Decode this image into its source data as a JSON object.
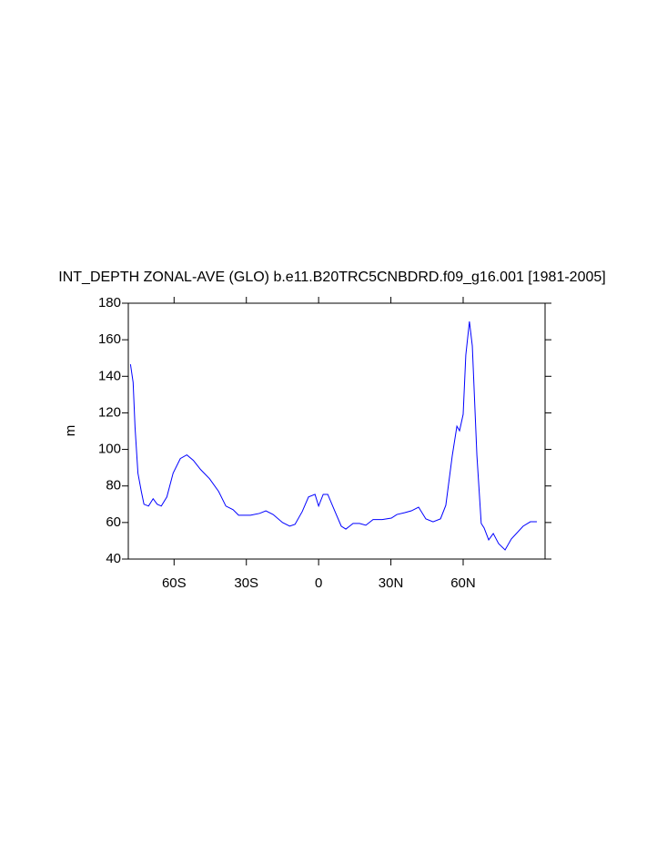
{
  "chart_data": {
    "type": "line",
    "title": "INT_DEPTH ZONAL-AVE (GLO) b.e11.B20TRC5CNBDRD.f09_g16.001 [1981-2005]",
    "y_label": "m",
    "x": [
      -78.1,
      -77,
      -76.2,
      -75,
      -73.6,
      -72.5,
      -70.6,
      -68.7,
      -67,
      -65.3,
      -63,
      -60.4,
      -57.4,
      -54.7,
      -52,
      -49,
      -45.3,
      -41.5,
      -38.5,
      -35.5,
      -33.2,
      -28.3,
      -24.5,
      -21.9,
      -18.9,
      -15,
      -12,
      -9.8,
      -6.8,
      -4.2,
      -1.5,
      0,
      1.9,
      3.8,
      6.8,
      9.4,
      11.3,
      14.3,
      17,
      19.6,
      22.6,
      26.4,
      30.2,
      32.5,
      35.8,
      38.5,
      41.5,
      44.5,
      47.5,
      50.6,
      52.8,
      55.5,
      57.4,
      58.5,
      60,
      61.1,
      62.6,
      63.8,
      65.7,
      67.5,
      68.7,
      70.6,
      72.5,
      74.7,
      77.4,
      80,
      84.9,
      87.9,
      90.6
    ],
    "series": [
      {
        "color": "#0000ff",
        "values": [
          146.6,
          136.7,
          112,
          87,
          77,
          70,
          69,
          73,
          70,
          69,
          74,
          87,
          95,
          97,
          94,
          89,
          84,
          77,
          69,
          67,
          64,
          64,
          65,
          66.4,
          64.4,
          60,
          58,
          59,
          66,
          74,
          75.4,
          69,
          75.4,
          75.4,
          66,
          58,
          56.4,
          59.5,
          59.5,
          58.5,
          61.6,
          61.6,
          62.4,
          64.4,
          65.4,
          66.4,
          68.4,
          62,
          60.4,
          62,
          69.4,
          96.8,
          112.7,
          110.2,
          119.2,
          151.6,
          170,
          156.6,
          96.8,
          59.5,
          57,
          50.5,
          54,
          48.5,
          45,
          51,
          58,
          60.4,
          60.4
        ]
      }
    ],
    "xlim": [
      -79,
      94
    ],
    "xticks": [
      {
        "value": -60,
        "label": "60S"
      },
      {
        "value": -30,
        "label": "30S"
      },
      0,
      {
        "value": 30,
        "label": "30N"
      },
      {
        "value": 60,
        "label": "60N"
      }
    ],
    "ylim": [
      40,
      180
    ],
    "yticks": [
      40,
      60,
      80,
      100,
      120,
      140,
      160,
      180
    ]
  }
}
